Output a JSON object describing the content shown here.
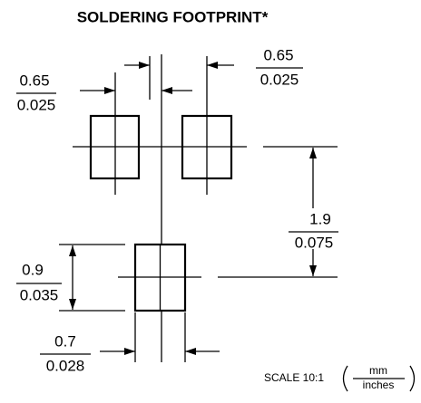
{
  "title": "SOLDERING FOOTPRINT*",
  "dimensions": {
    "pitch_left": {
      "mm": "0.65",
      "inches": "0.025"
    },
    "pitch_right": {
      "mm": "0.65",
      "inches": "0.025"
    },
    "row_spacing": {
      "mm": "1.9",
      "inches": "0.075"
    },
    "pad_length": {
      "mm": "0.9",
      "inches": "0.035"
    },
    "pad_width": {
      "mm": "0.7",
      "inches": "0.028"
    }
  },
  "scale": "SCALE 10:1",
  "units": {
    "top": "mm",
    "bottom": "inches"
  }
}
